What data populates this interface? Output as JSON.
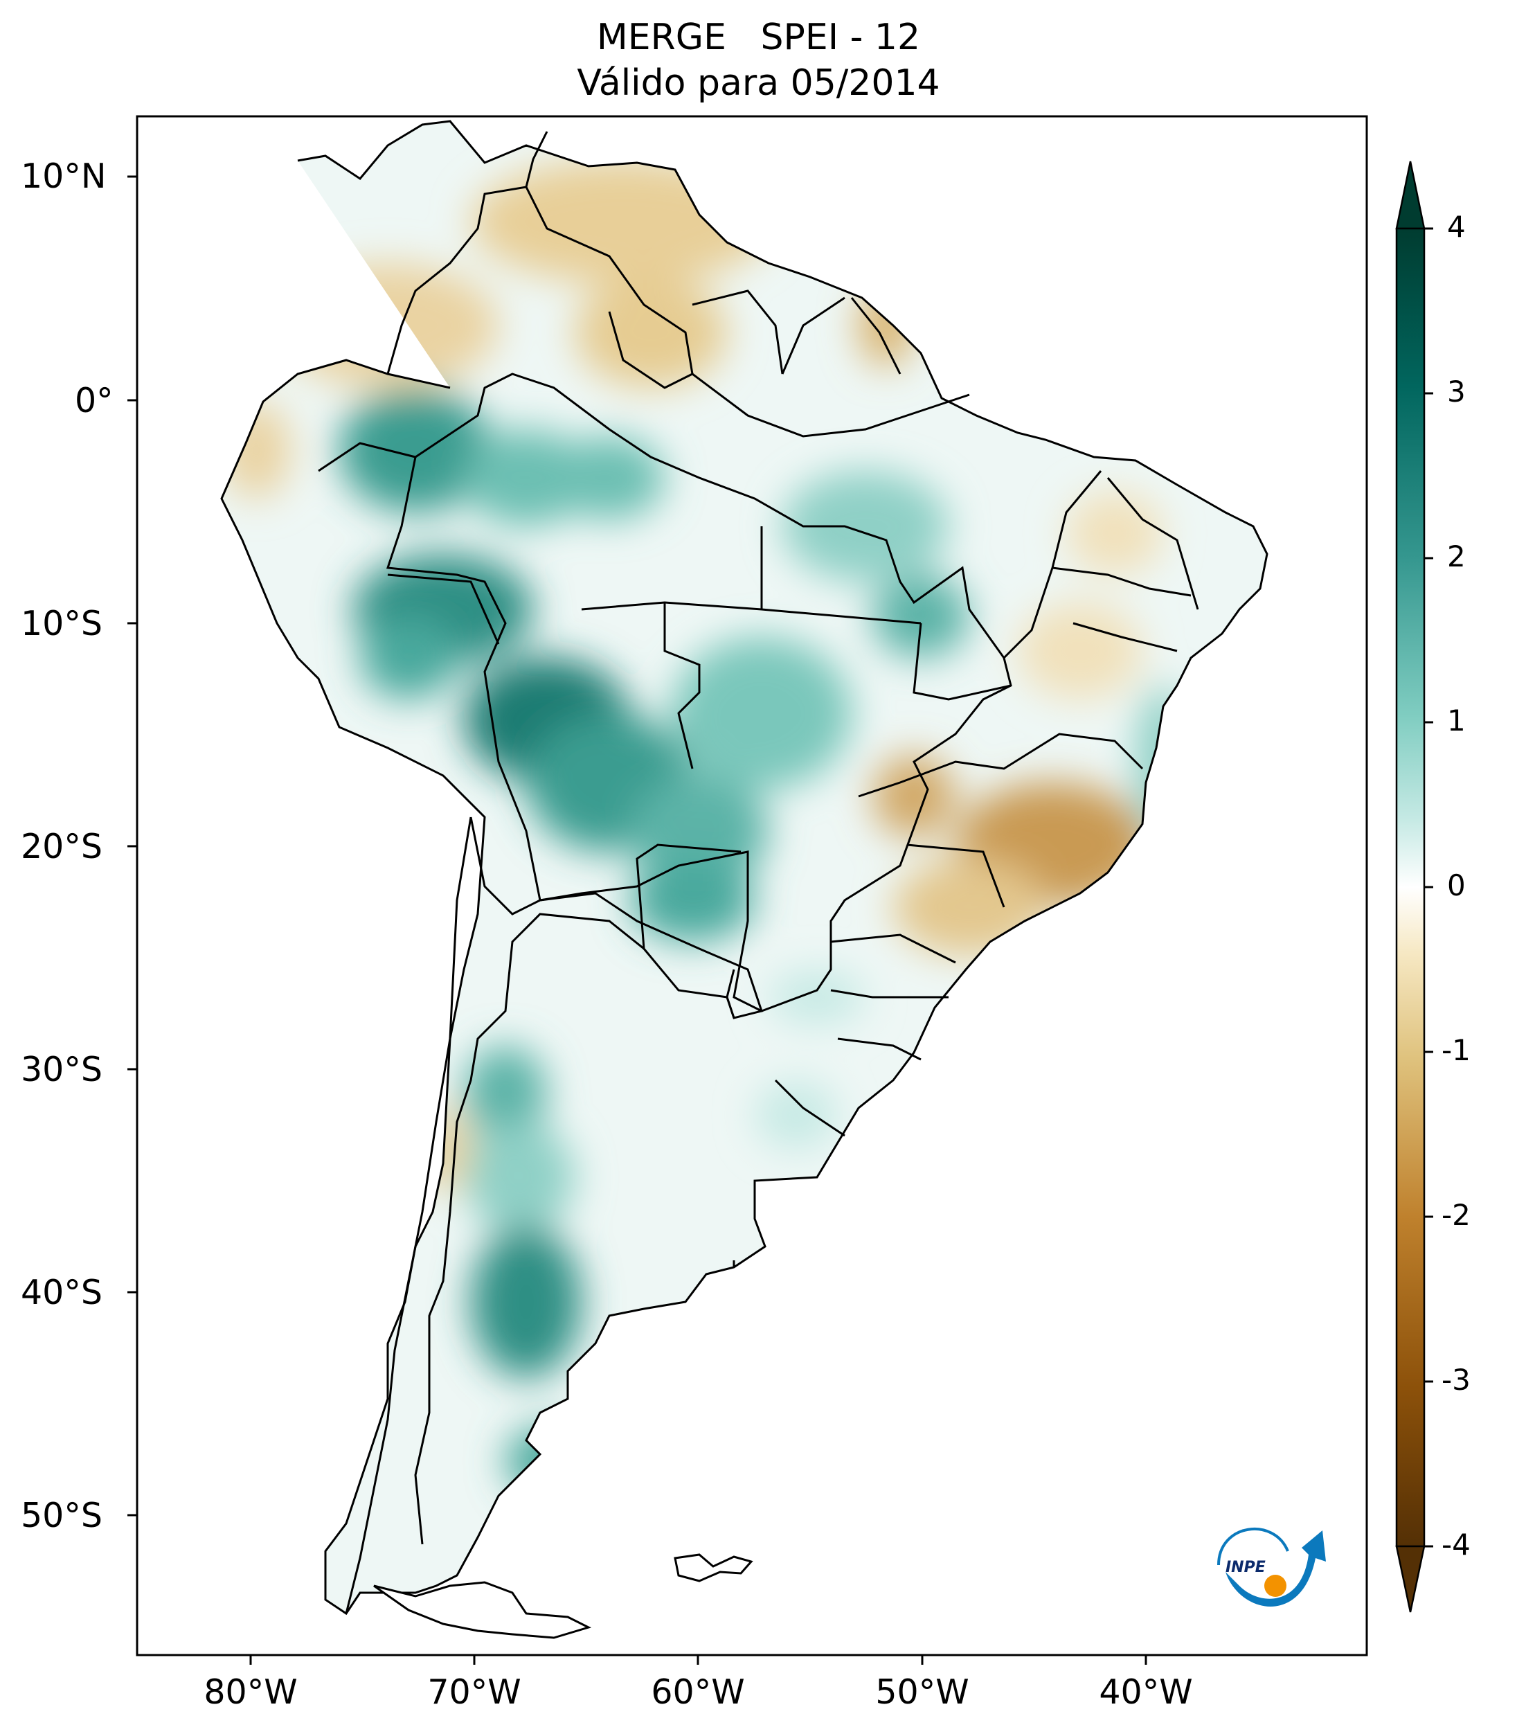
{
  "title": {
    "line1": "MERGE   SPEI - 12",
    "line2": "Válido para 05/2014"
  },
  "map": {
    "latitude_labels": [
      "10°N",
      "0°",
      "10°S",
      "20°S",
      "30°S",
      "40°S",
      "50°S"
    ],
    "longitude_labels": [
      "80°W",
      "70°W",
      "60°W",
      "50°W",
      "40°W"
    ],
    "variable": "SPEI - 12",
    "source": "MERGE"
  },
  "colorbar": {
    "ticks": [
      "4",
      "3",
      "2",
      "1",
      "0",
      "-1",
      "-2",
      "-3",
      "-4"
    ],
    "range": [
      -4,
      4
    ],
    "extend": "both",
    "colors": {
      "max": "#003c30",
      "wet_high": "#01665e",
      "wet_mid": "#35978f",
      "wet_low": "#80cdc1",
      "wet_light": "#c7eae5",
      "neutral": "#ffffff",
      "dry_light": "#f6e8c3",
      "dry_low": "#dfc27d",
      "dry_mid": "#bf812d",
      "dry_high": "#8c510a",
      "min": "#543005"
    }
  },
  "logo": {
    "text": "INPE"
  }
}
